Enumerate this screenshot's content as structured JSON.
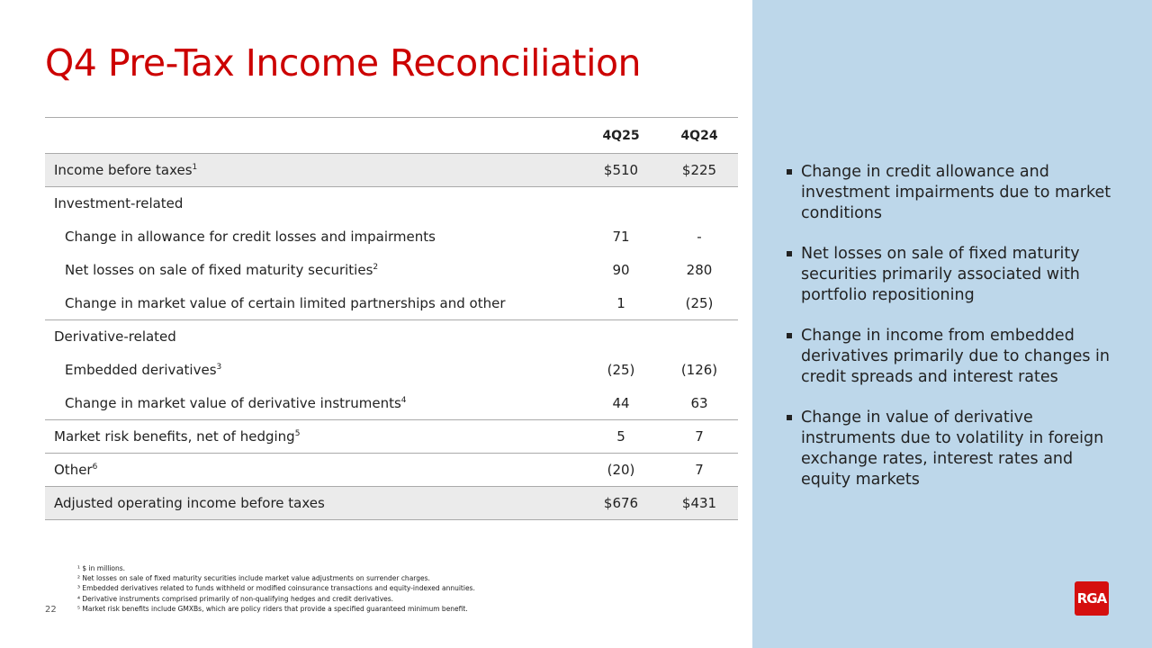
{
  "title": "Q4 Pre-Tax Income Reconciliation",
  "table": {
    "headers": [
      "",
      "4Q25",
      "4Q24"
    ],
    "rows": [
      {
        "label": "Income before taxes",
        "sup": "1",
        "v1": "$510",
        "v2": "$225"
      },
      {
        "label": "Investment-related",
        "sup": "",
        "v1": "",
        "v2": ""
      },
      {
        "label": "Change in allowance for credit losses and impairments",
        "sup": "",
        "v1": "71",
        "v2": "-"
      },
      {
        "label": "Net losses on sale of fixed maturity securities",
        "sup": "2",
        "v1": "90",
        "v2": "280"
      },
      {
        "label": "Change in market value of certain limited partnerships and other",
        "sup": "",
        "v1": "1",
        "v2": "(25)"
      },
      {
        "label": "Derivative-related",
        "sup": "",
        "v1": "",
        "v2": ""
      },
      {
        "label": "Embedded derivatives",
        "sup": "3",
        "v1": "(25)",
        "v2": "(126)"
      },
      {
        "label": "Change in market value of derivative instruments",
        "sup": "4",
        "v1": "44",
        "v2": "63"
      },
      {
        "label": "Market risk benefits, net of hedging",
        "sup": "5",
        "v1": "5",
        "v2": "7"
      },
      {
        "label": "Other",
        "sup": "6",
        "v1": "(20)",
        "v2": "7"
      },
      {
        "label": "Adjusted operating income before taxes",
        "sup": "",
        "v1": "$676",
        "v2": "$431"
      }
    ]
  },
  "bullets": [
    "Change in credit allowance and investment impairments due to market conditions",
    "Net losses on sale of fixed maturity securities primarily associated with portfolio repositioning",
    "Change in income from embedded derivatives primarily due to changes in credit spreads and interest rates",
    "Change in value of derivative instruments due to volatility in foreign exchange rates, interest rates and equity markets"
  ],
  "footnotes": [
    "¹ $ in millions.",
    "² Net losses on sale of fixed maturity securities include market value adjustments on surrender charges.",
    "³ Embedded derivatives related to funds withheld or modified coinsurance transactions and equity-indexed annuities.",
    "⁴ Derivative instruments comprised primarily of non-qualifying hedges and credit derivatives.",
    "⁵ Market risk benefits include GMXBs, which are policy riders that provide a specified guaranteed minimum benefit."
  ],
  "page_number": "22",
  "logo": "RGA",
  "colors": {
    "accent": "#cc0000",
    "panel": "#bdd7ea"
  }
}
